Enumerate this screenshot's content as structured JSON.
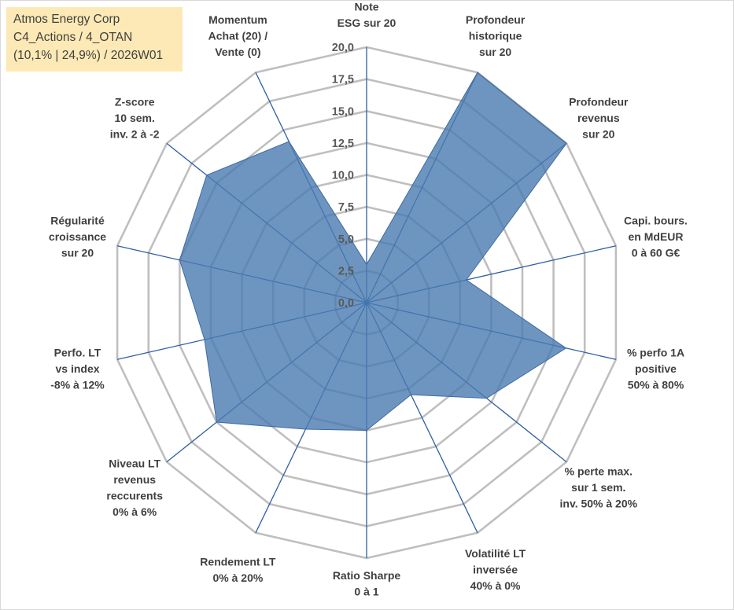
{
  "info_box": {
    "line1": "Atmos Energy Corp",
    "line2": "C4_Actions / 4_OTAN",
    "line3": "(10,1% | 24,9%) / 2026W01"
  },
  "colors": {
    "fill": "#4a7ab0",
    "line": "#2e5fa5",
    "grid": "#bfbfbf"
  },
  "chart_data": {
    "type": "radar",
    "title": "",
    "rlim": [
      0,
      20
    ],
    "ticks": [
      "0,0",
      "2,5",
      "5,0",
      "7,5",
      "10,0",
      "12,5",
      "15,0",
      "17,5",
      "20,0"
    ],
    "axes": [
      {
        "lines": [
          "Note",
          "ESG sur 20"
        ]
      },
      {
        "lines": [
          "Profondeur",
          "historique",
          "sur 20"
        ]
      },
      {
        "lines": [
          "Profondeur",
          "revenus",
          "sur 20"
        ]
      },
      {
        "lines": [
          "Capi. bours.",
          "en MdEUR",
          "0 à 60 G€"
        ]
      },
      {
        "lines": [
          "% perfo 1A",
          "positive",
          "50% à 80%"
        ]
      },
      {
        "lines": [
          "% perte max.",
          "sur 1 sem.",
          "inv. 50% à 20%"
        ]
      },
      {
        "lines": [
          "Volatilité LT",
          "inversée",
          "40% à 0%"
        ]
      },
      {
        "lines": [
          "Ratio Sharpe",
          "0 à 1"
        ]
      },
      {
        "lines": [
          "Rendement LT",
          "0% à 20%"
        ]
      },
      {
        "lines": [
          "Niveau LT",
          "revenus",
          "reccurents",
          "0% à 6%"
        ]
      },
      {
        "lines": [
          "Perfo. LT",
          "vs index",
          "-8% à 12%"
        ]
      },
      {
        "lines": [
          "Régularité",
          "croissance",
          "sur 20"
        ]
      },
      {
        "lines": [
          "Z-score",
          "10 sem.",
          "inv. 2 à -2"
        ]
      },
      {
        "lines": [
          "Momentum",
          "Achat (20) /",
          "Vente (0)"
        ]
      }
    ],
    "series": [
      {
        "name": "Atmos Energy Corp",
        "values": [
          3.0,
          20.0,
          20.0,
          8.0,
          16.0,
          12.0,
          8.0,
          10.0,
          11.0,
          15.0,
          13.0,
          15.0,
          16.0,
          14.0
        ]
      }
    ]
  }
}
